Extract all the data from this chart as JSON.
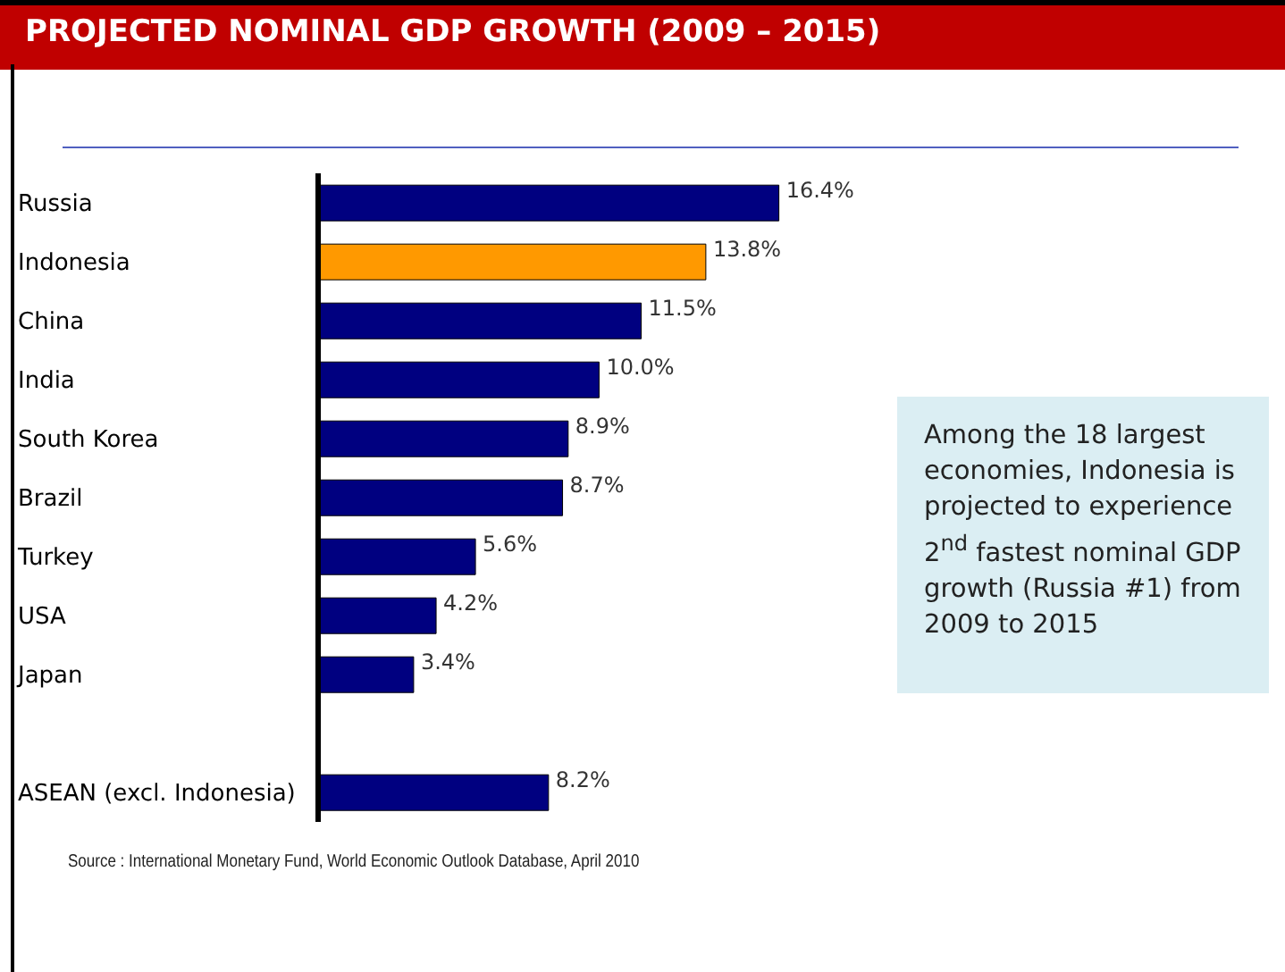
{
  "chart_data": {
    "type": "bar",
    "orientation": "horizontal",
    "title": "PROJECTED NOMINAL GDP GROWTH (2009 – 2015)",
    "categories": [
      "Russia",
      "Indonesia",
      "China",
      "India",
      "South Korea",
      "Brazil",
      "Turkey",
      "USA",
      "Japan",
      null,
      "ASEAN (excl. Indonesia)"
    ],
    "values": [
      16.4,
      13.8,
      11.5,
      10.0,
      8.9,
      8.7,
      5.6,
      4.2,
      3.4,
      null,
      8.2
    ],
    "value_labels": [
      "16.4%",
      "13.8%",
      "11.5%",
      "10.0%",
      "8.9%",
      "8.7%",
      "5.6%",
      "4.2%",
      "3.4%",
      null,
      "8.2%"
    ],
    "colors": [
      "#000080",
      "#ff9900",
      "#000080",
      "#000080",
      "#000080",
      "#000080",
      "#000080",
      "#000080",
      "#000080",
      "#000080",
      "#000080"
    ],
    "annotations": [
      "Among the 18 largest economies, Indonesia is projected to experience 2$^{nd}$ fastest nominal GDP growth (Russia #1) from 2009 to 2015",
      "Source : International Monetary Fund, World Economic Outlook Database, April 2010"
    ],
    "data_labels": false
  }
}
